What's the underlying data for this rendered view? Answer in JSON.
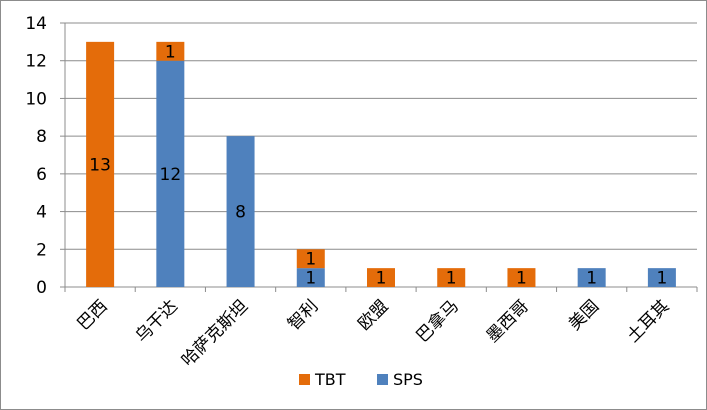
{
  "chart_data": {
    "type": "bar",
    "stacked": true,
    "categories": [
      "巴西",
      "乌干达",
      "哈萨克斯坦",
      "智利",
      "欧盟",
      "巴拿马",
      "墨西哥",
      "美国",
      "土耳其"
    ],
    "series": [
      {
        "name": "SPS",
        "color": "#4f81bd",
        "values": [
          0,
          12,
          8,
          1,
          0,
          0,
          0,
          1,
          1
        ]
      },
      {
        "name": "TBT",
        "color": "#e46c0a",
        "values": [
          13,
          1,
          0,
          1,
          1,
          1,
          1,
          0,
          0
        ]
      }
    ],
    "ylim": [
      0,
      14
    ],
    "yticks": [
      0,
      2,
      4,
      6,
      8,
      10,
      12,
      14
    ],
    "grid": true,
    "legend_position": "bottom",
    "legend_order": [
      "TBT",
      "SPS"
    ],
    "title": "",
    "xlabel": "",
    "ylabel": ""
  }
}
